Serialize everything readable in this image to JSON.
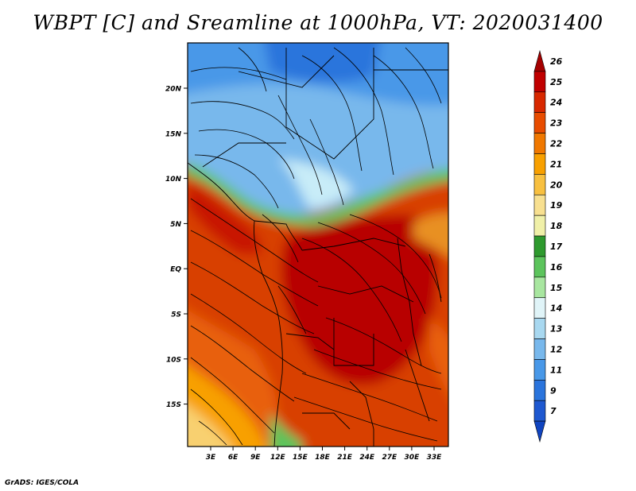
{
  "title": "WBPT [C] and Sreamline at 1000hPa, VT: 2020031400",
  "footer": "GrADS: IGES/COLA",
  "map": {
    "lat_ticks": [
      "20N",
      "15N",
      "10N",
      "5N",
      "EQ",
      "5S",
      "10S",
      "15S"
    ],
    "lon_ticks": [
      "3E",
      "6E",
      "9E",
      "12E",
      "15E",
      "18E",
      "21E",
      "24E",
      "27E",
      "30E",
      "33E"
    ]
  },
  "colorbar": {
    "labels": [
      "26",
      "25",
      "24",
      "23",
      "22",
      "21",
      "20",
      "19",
      "18",
      "17",
      "16",
      "15",
      "14",
      "13",
      "12",
      "11",
      "9",
      "7"
    ],
    "colors": [
      "#a50000",
      "#c00000",
      "#d82800",
      "#e84c00",
      "#f07800",
      "#f8a000",
      "#f8c040",
      "#f8e090",
      "#f0f0a8",
      "#2e9a2e",
      "#5cc45c",
      "#a8e6a0",
      "#e0f4f8",
      "#a8d8f0",
      "#78b8ec",
      "#4898e8",
      "#2a74dc",
      "#1e58d0",
      "#1044c0"
    ]
  }
}
